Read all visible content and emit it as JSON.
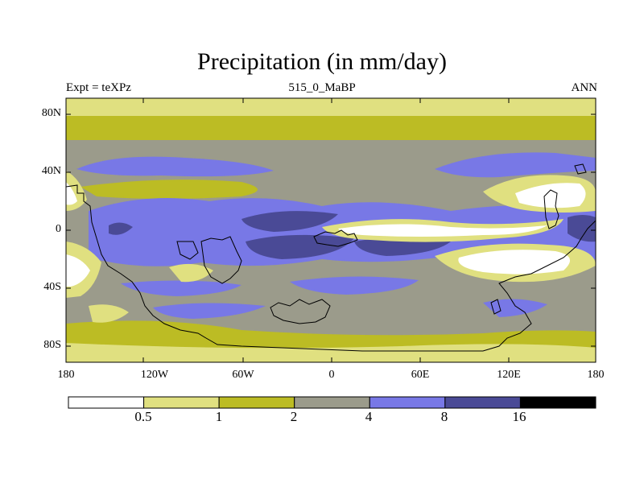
{
  "title": "Precipitation (in mm/day)",
  "experiment": "Expt = teXPz",
  "run": "515_0_MaBP",
  "season": "ANN",
  "y_ticks": [
    "80N",
    "40N",
    "0",
    "40S",
    "80S"
  ],
  "x_ticks": [
    "180",
    "120W",
    "60W",
    "0",
    "60E",
    "120E",
    "180"
  ],
  "colorbar": {
    "labels": [
      "0.5",
      "1",
      "2",
      "4",
      "8",
      "16"
    ],
    "colors": [
      "#ffffff",
      "#e0e080",
      "#bcbc24",
      "#9b9b8b",
      "#7878e6",
      "#4a4a96",
      "#000000"
    ]
  },
  "units": "mm/day"
}
